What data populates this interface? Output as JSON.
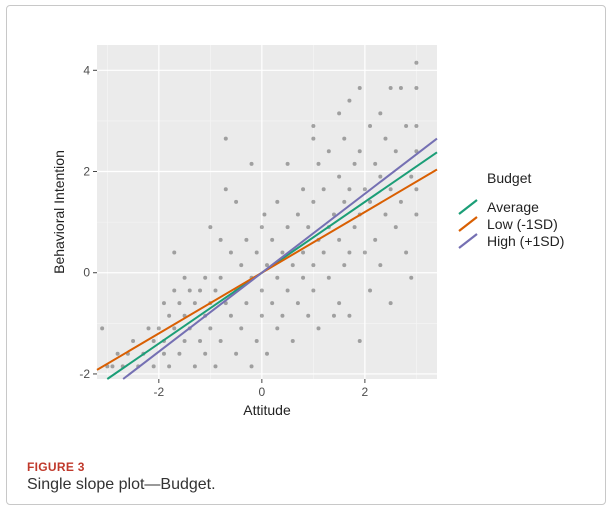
{
  "figure": {
    "label": "FIGURE 3",
    "caption": "Single slope plot—Budget."
  },
  "chart_data": {
    "type": "scatter",
    "title": "",
    "xlabel": "Attitude",
    "ylabel": "Behavioral Intention",
    "xlim": [
      -3.2,
      3.4
    ],
    "ylim": [
      -2.1,
      4.5
    ],
    "xticks": [
      -2,
      0,
      2
    ],
    "yticks": [
      -2,
      0,
      2,
      4
    ],
    "grid": true,
    "background": "#ebebeb",
    "legend": {
      "title": "Budget",
      "placement": "right",
      "entries": [
        "Average",
        "Low (-1SD)",
        "High (+1SD)"
      ]
    },
    "points": [
      [
        -3.1,
        -1.1
      ],
      [
        -3.0,
        -1.85
      ],
      [
        -2.9,
        -1.85
      ],
      [
        -2.8,
        -1.6
      ],
      [
        -2.7,
        -1.85
      ],
      [
        -2.6,
        -1.6
      ],
      [
        -2.5,
        -1.35
      ],
      [
        -2.4,
        -1.85
      ],
      [
        -2.3,
        -1.6
      ],
      [
        -2.2,
        -1.1
      ],
      [
        -2.1,
        -1.35
      ],
      [
        -2.1,
        -1.85
      ],
      [
        -2.0,
        -1.1
      ],
      [
        -1.9,
        -0.6
      ],
      [
        -1.9,
        -1.35
      ],
      [
        -1.9,
        -1.6
      ],
      [
        -1.8,
        -0.85
      ],
      [
        -1.8,
        -1.85
      ],
      [
        -1.7,
        0.4
      ],
      [
        -1.7,
        -0.35
      ],
      [
        -1.7,
        -1.1
      ],
      [
        -1.6,
        -0.6
      ],
      [
        -1.6,
        -1.6
      ],
      [
        -1.5,
        -0.1
      ],
      [
        -1.5,
        -0.85
      ],
      [
        -1.5,
        -1.35
      ],
      [
        -1.4,
        -0.35
      ],
      [
        -1.4,
        -1.1
      ],
      [
        -1.3,
        -0.6
      ],
      [
        -1.3,
        -1.85
      ],
      [
        -1.2,
        -0.35
      ],
      [
        -1.2,
        -1.35
      ],
      [
        -1.1,
        -0.1
      ],
      [
        -1.1,
        -0.85
      ],
      [
        -1.1,
        -1.6
      ],
      [
        -1.0,
        0.9
      ],
      [
        -1.0,
        -0.6
      ],
      [
        -1.0,
        -1.1
      ],
      [
        -0.9,
        -0.35
      ],
      [
        -0.9,
        -1.85
      ],
      [
        -0.8,
        0.65
      ],
      [
        -0.8,
        -0.1
      ],
      [
        -0.8,
        -1.35
      ],
      [
        -0.7,
        1.65
      ],
      [
        -0.7,
        -0.6
      ],
      [
        -0.7,
        2.65
      ],
      [
        -0.6,
        0.4
      ],
      [
        -0.6,
        -0.85
      ],
      [
        -0.5,
        1.4
      ],
      [
        -0.5,
        -0.35
      ],
      [
        -0.5,
        -1.6
      ],
      [
        -0.4,
        0.15
      ],
      [
        -0.4,
        -1.1
      ],
      [
        -0.3,
        0.65
      ],
      [
        -0.3,
        -0.6
      ],
      [
        -0.2,
        2.15
      ],
      [
        -0.2,
        -0.1
      ],
      [
        -0.2,
        -1.85
      ],
      [
        -0.1,
        0.4
      ],
      [
        -0.1,
        -1.35
      ],
      [
        0.0,
        0.9
      ],
      [
        0.0,
        -0.35
      ],
      [
        0.0,
        -0.85
      ],
      [
        0.05,
        1.15
      ],
      [
        0.1,
        0.15
      ],
      [
        0.1,
        -1.6
      ],
      [
        0.2,
        0.65
      ],
      [
        0.2,
        -0.6
      ],
      [
        0.3,
        1.4
      ],
      [
        0.3,
        -0.1
      ],
      [
        0.3,
        -1.1
      ],
      [
        0.4,
        0.4
      ],
      [
        0.4,
        -0.85
      ],
      [
        0.5,
        2.15
      ],
      [
        0.5,
        0.9
      ],
      [
        0.5,
        -0.35
      ],
      [
        0.6,
        0.15
      ],
      [
        0.6,
        -1.35
      ],
      [
        0.7,
        1.15
      ],
      [
        0.7,
        -0.6
      ],
      [
        0.8,
        1.65
      ],
      [
        0.8,
        0.4
      ],
      [
        0.8,
        -0.1
      ],
      [
        0.9,
        0.9
      ],
      [
        0.9,
        -0.85
      ],
      [
        1.0,
        2.9
      ],
      [
        1.0,
        2.65
      ],
      [
        1.0,
        1.4
      ],
      [
        1.0,
        0.15
      ],
      [
        1.0,
        -0.35
      ],
      [
        1.1,
        2.15
      ],
      [
        1.1,
        0.65
      ],
      [
        1.1,
        -1.1
      ],
      [
        1.2,
        1.65
      ],
      [
        1.2,
        0.4
      ],
      [
        1.3,
        2.4
      ],
      [
        1.3,
        0.9
      ],
      [
        1.3,
        -0.1
      ],
      [
        1.4,
        1.15
      ],
      [
        1.4,
        -0.85
      ],
      [
        1.5,
        3.15
      ],
      [
        1.5,
        1.9
      ],
      [
        1.5,
        0.65
      ],
      [
        1.5,
        -0.6
      ],
      [
        1.6,
        2.65
      ],
      [
        1.6,
        1.4
      ],
      [
        1.6,
        0.15
      ],
      [
        1.7,
        3.4
      ],
      [
        1.7,
        1.65
      ],
      [
        1.7,
        0.4
      ],
      [
        1.7,
        -0.85
      ],
      [
        1.8,
        2.15
      ],
      [
        1.8,
        0.9
      ],
      [
        1.9,
        3.65
      ],
      [
        1.9,
        2.4
      ],
      [
        1.9,
        1.15
      ],
      [
        1.9,
        -1.35
      ],
      [
        2.0,
        1.65
      ],
      [
        2.0,
        0.4
      ],
      [
        2.1,
        2.9
      ],
      [
        2.1,
        1.4
      ],
      [
        2.1,
        -0.35
      ],
      [
        2.2,
        2.15
      ],
      [
        2.2,
        0.65
      ],
      [
        2.3,
        3.15
      ],
      [
        2.3,
        1.9
      ],
      [
        2.3,
        0.15
      ],
      [
        2.4,
        2.65
      ],
      [
        2.4,
        1.15
      ],
      [
        2.5,
        3.65
      ],
      [
        2.5,
        1.65
      ],
      [
        2.5,
        -0.6
      ],
      [
        2.6,
        2.4
      ],
      [
        2.6,
        0.9
      ],
      [
        2.7,
        3.65
      ],
      [
        2.7,
        1.4
      ],
      [
        2.8,
        2.9
      ],
      [
        2.8,
        0.4
      ],
      [
        2.9,
        1.9
      ],
      [
        2.9,
        -0.1
      ],
      [
        3.0,
        4.15
      ],
      [
        3.0,
        3.65
      ],
      [
        3.0,
        2.9
      ],
      [
        3.0,
        2.4
      ],
      [
        3.0,
        1.65
      ],
      [
        3.0,
        1.15
      ]
    ],
    "series": [
      {
        "name": "Average",
        "color": "#1b9e77",
        "slope": 0.7,
        "intercept": 0.0
      },
      {
        "name": "Low (-1SD)",
        "color": "#d95f02",
        "slope": 0.6,
        "intercept": 0.0
      },
      {
        "name": "High (+1SD)",
        "color": "#7570b3",
        "slope": 0.78,
        "intercept": 0.0
      }
    ]
  }
}
